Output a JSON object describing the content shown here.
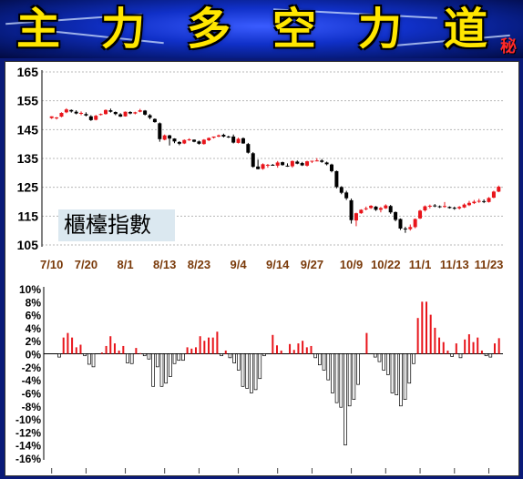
{
  "banner": {
    "title_chars": [
      "主",
      "力",
      "多",
      "空",
      "力",
      "道"
    ],
    "secret_mark": "秘"
  },
  "colors": {
    "up": "#e8151b",
    "down": "#000000",
    "date_label": "#7a3a0a",
    "title_text": "#ffe600",
    "background": "#0a1a78"
  },
  "chart_data": [
    {
      "type": "candlestick",
      "title": "",
      "annotation": "櫃檯指數",
      "ylim": [
        105,
        165
      ],
      "yticks": [
        165,
        155,
        145,
        135,
        125,
        115,
        105
      ],
      "grid": true,
      "x_labels": [
        "7/10",
        "7/20",
        "8/1",
        "8/13",
        "8/23",
        "9/4",
        "9/14",
        "9/27",
        "10/9",
        "10/22",
        "11/1",
        "11/13",
        "11/23"
      ],
      "x_label_index": [
        0,
        7,
        15,
        23,
        30,
        38,
        46,
        53,
        61,
        68,
        75,
        82,
        89
      ],
      "candles": [
        [
          149,
          149.6,
          148.7,
          149.6
        ],
        [
          149,
          149.4,
          148.5,
          149.2
        ],
        [
          149.5,
          151,
          149.3,
          150.8
        ],
        [
          151,
          152.4,
          150.7,
          152
        ],
        [
          151.8,
          152,
          150.9,
          151.3
        ],
        [
          151.2,
          151.7,
          150.3,
          150.6
        ],
        [
          150.5,
          151.3,
          150,
          150.8
        ],
        [
          150.4,
          151,
          149.6,
          149.9
        ],
        [
          149.6,
          150,
          148,
          148.3
        ],
        [
          148.4,
          150.1,
          148.2,
          149.8
        ],
        [
          150.2,
          150.6,
          149.9,
          150.4
        ],
        [
          150.4,
          152,
          150.2,
          151.8
        ],
        [
          151.7,
          152.3,
          150.9,
          151.2
        ],
        [
          151.1,
          151.3,
          150,
          150.4
        ],
        [
          150.3,
          150.7,
          149.4,
          149.5
        ],
        [
          149.6,
          151.3,
          149.5,
          151.2
        ],
        [
          151.1,
          151.4,
          150.3,
          150.6
        ],
        [
          150.6,
          151.2,
          150.3,
          151
        ],
        [
          151.2,
          152.2,
          151,
          151.7
        ],
        [
          151.6,
          151.8,
          149.9,
          150.2
        ],
        [
          150,
          150.4,
          148.6,
          149.1
        ],
        [
          148.7,
          148.9,
          147.4,
          147.6
        ],
        [
          147.2,
          147.5,
          140.8,
          141.7
        ],
        [
          141.5,
          143.3,
          141.3,
          143
        ],
        [
          143,
          143.2,
          139.5,
          141.9
        ],
        [
          141.9,
          142,
          140.3,
          140.9
        ],
        [
          140.7,
          141,
          139.6,
          140.1
        ],
        [
          140.2,
          141.6,
          140,
          141.4
        ],
        [
          141.4,
          142,
          141.1,
          141.6
        ],
        [
          141.5,
          141.6,
          140.6,
          140.8
        ],
        [
          140.9,
          141.2,
          139.8,
          140.1
        ],
        [
          140,
          141.7,
          139.8,
          141.5
        ],
        [
          141.3,
          142.3,
          141,
          142.1
        ],
        [
          142.2,
          142.6,
          141.9,
          142.6
        ],
        [
          142.6,
          143.3,
          142.4,
          143
        ],
        [
          143.2,
          143.6,
          142.3,
          142.6
        ],
        [
          142.6,
          142.9,
          142.1,
          142.4
        ],
        [
          142.6,
          143.3,
          140.2,
          140.5
        ],
        [
          140.4,
          142.2,
          140.2,
          141.8
        ],
        [
          142,
          142.3,
          140.1,
          140.2
        ],
        [
          140,
          140.4,
          136.7,
          137
        ],
        [
          136.8,
          137.2,
          131.8,
          132.1
        ],
        [
          132.2,
          134.6,
          131.2,
          131.3
        ],
        [
          131.4,
          133.3,
          131.1,
          133
        ],
        [
          132.5,
          133.1,
          131.8,
          132.8
        ],
        [
          132.8,
          133.1,
          132.5,
          132.6
        ],
        [
          132.5,
          134.1,
          131.8,
          133.6
        ],
        [
          133.7,
          133.9,
          132.5,
          132.7
        ],
        [
          132.5,
          133.3,
          132.1,
          132.3
        ],
        [
          132.3,
          134.3,
          131.8,
          134.1
        ],
        [
          133.9,
          134.3,
          133,
          133.2
        ],
        [
          133.4,
          133.8,
          132.4,
          132.6
        ],
        [
          132.5,
          134.2,
          132.2,
          134
        ],
        [
          133.9,
          134.2,
          133.4,
          134.2
        ],
        [
          134.2,
          135.1,
          134,
          134.3
        ],
        [
          134.3,
          134.8,
          133.5,
          133.8
        ],
        [
          133.6,
          133.9,
          132.6,
          133
        ],
        [
          132.9,
          133.2,
          130.2,
          130.6
        ],
        [
          130.6,
          130.8,
          124.6,
          125.1
        ],
        [
          125.1,
          125.4,
          122.6,
          123.1
        ],
        [
          123.2,
          123.8,
          120.6,
          121.2
        ],
        [
          120.5,
          121.1,
          112.4,
          113.6
        ],
        [
          113.5,
          116.2,
          111.5,
          116
        ],
        [
          116,
          117.4,
          115.8,
          117.2
        ],
        [
          117.4,
          118.3,
          117,
          117.7
        ],
        [
          117.8,
          118.8,
          117.5,
          118.6
        ],
        [
          118.3,
          118.5,
          116.8,
          117.2
        ],
        [
          117.2,
          118.2,
          116.3,
          117.8
        ],
        [
          117.7,
          119.1,
          117.5,
          118.7
        ],
        [
          118.5,
          118.9,
          115.8,
          116.3
        ],
        [
          116.4,
          116.6,
          113.2,
          113.7
        ],
        [
          114,
          114.2,
          110.2,
          110.7
        ],
        [
          110.7,
          111.3,
          109.2,
          110.5
        ],
        [
          110.5,
          112.1,
          110,
          111.2
        ],
        [
          111.2,
          114.2,
          110.8,
          114
        ],
        [
          114.2,
          117.2,
          114,
          116.9
        ],
        [
          117,
          118.7,
          116.6,
          118.4
        ],
        [
          118.3,
          119,
          117.7,
          118.6
        ],
        [
          118.7,
          119.2,
          118.1,
          118.4
        ],
        [
          118.4,
          118.7,
          117.8,
          118.3
        ],
        [
          118.4,
          119.9,
          117.9,
          118.5
        ],
        [
          118.2,
          118.4,
          117.6,
          117.8
        ],
        [
          117.9,
          118.3,
          117.2,
          117.6
        ],
        [
          117.7,
          118.5,
          117.3,
          118.2
        ],
        [
          118,
          119.4,
          117.8,
          119
        ],
        [
          118.8,
          120.3,
          118.5,
          119.6
        ],
        [
          119.5,
          120.6,
          119.2,
          120
        ],
        [
          120.1,
          121,
          119.6,
          120.3
        ],
        [
          120.2,
          120.8,
          119.5,
          119.9
        ],
        [
          119.9,
          121.6,
          119.7,
          121.3
        ],
        [
          121.4,
          123.8,
          121.2,
          123.5
        ],
        [
          123.5,
          125.6,
          123.3,
          125.2
        ]
      ]
    },
    {
      "type": "bar",
      "title": "",
      "ylim": [
        -16,
        10
      ],
      "yticks": [
        "10%",
        "8%",
        "6%",
        "4%",
        "2%",
        "0%",
        "-2%",
        "-4%",
        "-6%",
        "-8%",
        "-10%",
        "-12%",
        "-14%",
        "-16%"
      ],
      "grid": false,
      "values": [
        0,
        -0.5,
        2.5,
        3.2,
        2.5,
        1,
        1.4,
        -0.3,
        -1.6,
        -2,
        0,
        0.2,
        1.2,
        2.7,
        1.6,
        0.5,
        1.2,
        -1.4,
        -1.5,
        0.9,
        0.1,
        -0.3,
        -0.8,
        -5,
        -2,
        -5,
        -4.5,
        -3.5,
        -1.5,
        -1,
        -1,
        1,
        0.8,
        1,
        2.7,
        2,
        2.5,
        2.5,
        3.4,
        -0.3,
        0.5,
        -0.6,
        -1.4,
        -2.5,
        -5,
        -5.3,
        -6,
        -5.5,
        -3.8,
        -0.3,
        0,
        2.9,
        1.3,
        0.5,
        0,
        1.5,
        0.6,
        1.6,
        2,
        1,
        1.2,
        -0.6,
        -1.7,
        -2.5,
        -4,
        -6,
        -7.5,
        -8.2,
        -14,
        -8,
        -7,
        -4.7,
        0,
        3.2,
        0,
        -0.5,
        -1.2,
        -2.5,
        -3.2,
        -6,
        -6.3,
        -8,
        -7,
        -4.5,
        -1.5,
        5.5,
        8,
        8,
        6,
        4,
        2.5,
        1.8,
        0.5,
        -0.4,
        1.6,
        -0.6,
        2.2,
        3,
        1.8,
        2.5,
        0.5,
        -0.3,
        -0.5,
        1.6,
        2.4
      ]
    }
  ]
}
